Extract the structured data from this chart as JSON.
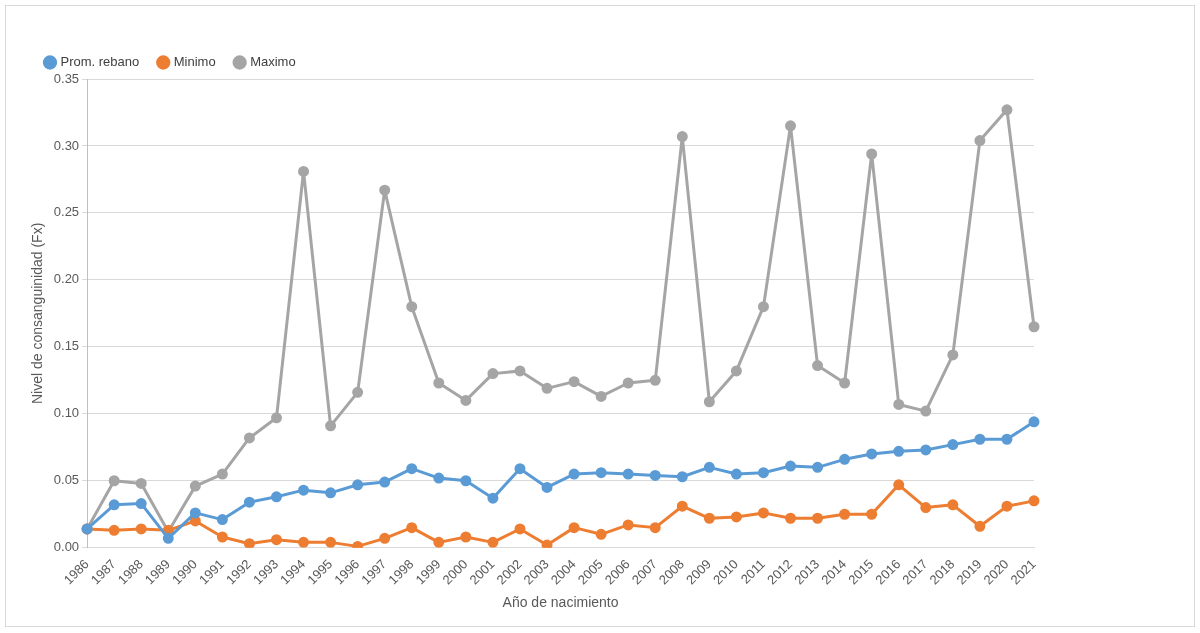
{
  "chart_data": {
    "type": "line",
    "xlabel": "Año de nacimiento",
    "ylabel": "Nivel de consanguinidad (Fx)",
    "categories": [
      "1986",
      "1987",
      "1988",
      "1989",
      "1990",
      "1991",
      "1992",
      "1993",
      "1994",
      "1995",
      "1996",
      "1997",
      "1998",
      "1999",
      "2000",
      "2001",
      "2002",
      "2003",
      "2004",
      "2005",
      "2006",
      "2007",
      "2008",
      "2009",
      "2010",
      "2011",
      "2012",
      "2013",
      "2014",
      "2015",
      "2016",
      "2017",
      "2018",
      "2019",
      "2020",
      "2021"
    ],
    "series": [
      {
        "name": "Prom. rebano",
        "color": "#5b9bd5",
        "values": [
          0.014,
          0.032,
          0.033,
          0.007,
          0.026,
          0.021,
          0.034,
          0.038,
          0.043,
          0.041,
          0.047,
          0.049,
          0.059,
          0.052,
          0.05,
          0.037,
          0.059,
          0.045,
          0.055,
          0.056,
          0.055,
          0.054,
          0.053,
          0.06,
          0.055,
          0.056,
          0.061,
          0.06,
          0.066,
          0.07,
          0.072,
          0.073,
          0.077,
          0.081,
          0.081,
          0.094
        ]
      },
      {
        "name": "Minimo",
        "color": "#ed7d31",
        "values": [
          0.014,
          0.013,
          0.014,
          0.013,
          0.02,
          0.008,
          0.003,
          0.006,
          0.004,
          0.004,
          0.001,
          0.007,
          0.015,
          0.004,
          0.008,
          0.004,
          0.014,
          0.002,
          0.015,
          0.01,
          0.017,
          0.015,
          0.031,
          0.022,
          0.023,
          0.026,
          0.022,
          0.022,
          0.025,
          0.025,
          0.047,
          0.03,
          0.032,
          0.016,
          0.031,
          0.035
        ]
      },
      {
        "name": "Maximo",
        "color": "#a5a5a5",
        "values": [
          0.014,
          0.05,
          0.048,
          0.012,
          0.046,
          0.055,
          0.082,
          0.097,
          0.281,
          0.091,
          0.116,
          0.267,
          0.18,
          0.123,
          0.11,
          0.13,
          0.132,
          0.119,
          0.124,
          0.113,
          0.123,
          0.125,
          0.307,
          0.109,
          0.132,
          0.18,
          0.315,
          0.136,
          0.123,
          0.294,
          0.107,
          0.102,
          0.144,
          0.304,
          0.327,
          0.165
        ]
      }
    ],
    "ylim": [
      0,
      0.35
    ],
    "yticks": [
      {
        "value": 0,
        "label": "0.00"
      },
      {
        "value": 0.05,
        "label": "0.05"
      },
      {
        "value": 0.1,
        "label": "0.10"
      },
      {
        "value": 0.15,
        "label": "0.15"
      },
      {
        "value": 0.2,
        "label": "0.20"
      },
      {
        "value": 0.25,
        "label": "0.25"
      },
      {
        "value": 0.3,
        "label": "0.30"
      },
      {
        "value": 0.35,
        "label": "0.35"
      }
    ],
    "grid": "y",
    "legend": "top left",
    "marker": "circle",
    "line_style": "solid"
  }
}
